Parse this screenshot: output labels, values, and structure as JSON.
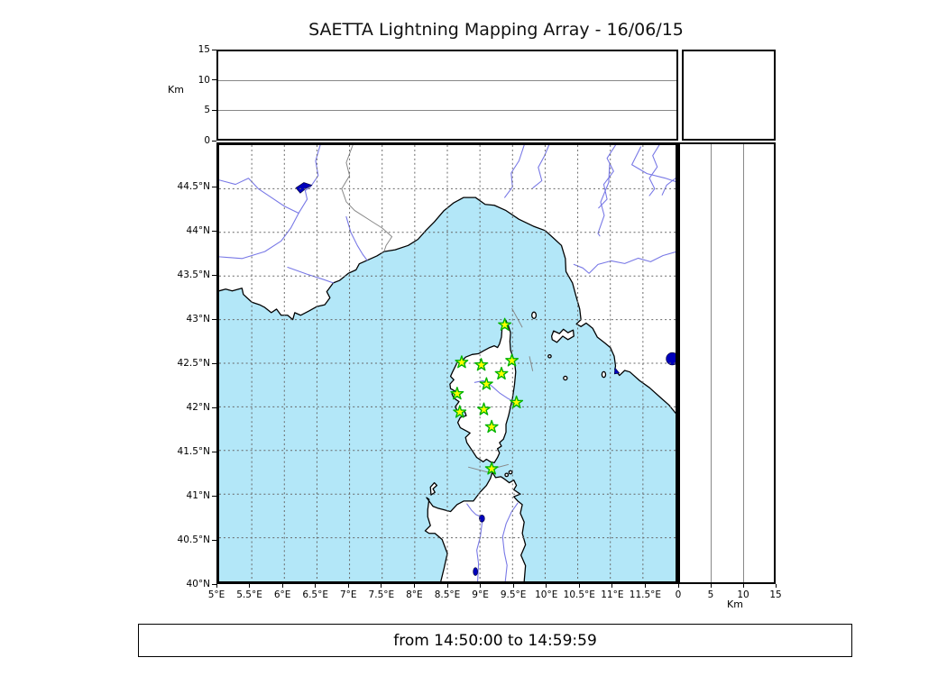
{
  "title": "SAETTA Lightning Mapping Array - 16/06/15",
  "footer": "from 14:50:00 to 14:59:59",
  "chart_data": {
    "type": "scatter",
    "title": "SAETTA Lightning Mapping Array - 16/06/15",
    "subtitle": "from 14:50:00 to 14:59:59",
    "layout": "four-panel lightning mapping array view: altitude-vs-longitude (top), map (center), altitude-vs-latitude (right), histogram box (top right); no lightning sources plotted in this time window",
    "altitude_axis": {
      "label": "Km",
      "ticks": [
        0,
        5,
        10,
        15
      ],
      "lim": [
        0,
        15
      ]
    },
    "map": {
      "xlim": [
        5,
        12
      ],
      "ylim": [
        40,
        45
      ],
      "grid": "dashed",
      "lon_ticks": [
        {
          "v": 5,
          "label": "5°E"
        },
        {
          "v": 5.5,
          "label": "5.5°E"
        },
        {
          "v": 6,
          "label": "6°E"
        },
        {
          "v": 6.5,
          "label": "6.5°E"
        },
        {
          "v": 7,
          "label": "7°E"
        },
        {
          "v": 7.5,
          "label": "7.5°E"
        },
        {
          "v": 8,
          "label": "8°E"
        },
        {
          "v": 8.5,
          "label": "8.5°E"
        },
        {
          "v": 9,
          "label": "9°E"
        },
        {
          "v": 9.5,
          "label": "9.5°E"
        },
        {
          "v": 10,
          "label": "10°E"
        },
        {
          "v": 10.5,
          "label": "10.5°E"
        },
        {
          "v": 11,
          "label": "11°E"
        },
        {
          "v": 11.5,
          "label": "11.5°E"
        }
      ],
      "lat_ticks": [
        {
          "v": 40,
          "label": "40°N"
        },
        {
          "v": 40.5,
          "label": "40.5°N"
        },
        {
          "v": 41,
          "label": "41°N"
        },
        {
          "v": 41.5,
          "label": "41.5°N"
        },
        {
          "v": 42,
          "label": "42°N"
        },
        {
          "v": 42.5,
          "label": "42.5°N"
        },
        {
          "v": 43,
          "label": "43°N"
        },
        {
          "v": 43.5,
          "label": "43.5°N"
        },
        {
          "v": 44,
          "label": "44°N"
        },
        {
          "v": 44.5,
          "label": "44.5°N"
        }
      ]
    },
    "stations_lon_lat": [
      [
        9.38,
        42.94
      ],
      [
        8.72,
        42.51
      ],
      [
        9.02,
        42.48
      ],
      [
        9.49,
        42.53
      ],
      [
        9.33,
        42.38
      ],
      [
        9.1,
        42.26
      ],
      [
        8.65,
        42.15
      ],
      [
        9.56,
        42.05
      ],
      [
        8.69,
        41.94
      ],
      [
        9.06,
        41.97
      ],
      [
        9.18,
        41.77
      ],
      [
        9.18,
        41.29
      ]
    ],
    "colors": {
      "sea": "#b3e7f8",
      "land": "#ffffff",
      "coast": "#000000",
      "river": "#7878e6",
      "lake": "#0000bb",
      "station_fill": "#ffff00",
      "station_edge": "#00b400",
      "grid": "#666666"
    }
  }
}
